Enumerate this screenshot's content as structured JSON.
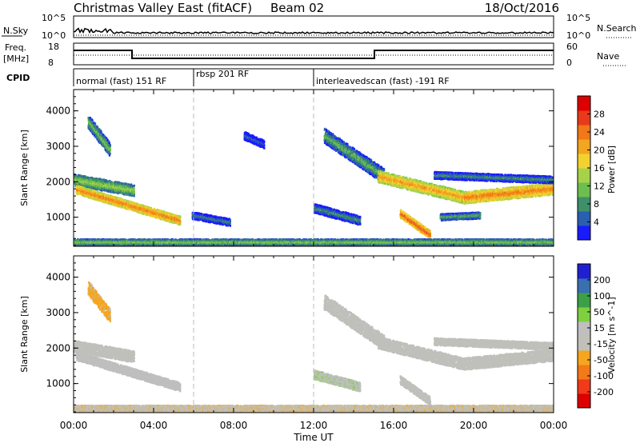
{
  "header": {
    "title": "Christmas Valley East (fitACF)",
    "beam": "Beam 02",
    "date": "18/Oct/2016"
  },
  "aux": {
    "nsky_label": "N.Sky",
    "nsky_ticks": [
      "10^5",
      "10^0"
    ],
    "nsearch_label": "N.Search",
    "nsearch_ticks": [
      "10^5",
      "10^0"
    ],
    "freq_label_1": "Freq.",
    "freq_label_2": "[MHz]",
    "freq_ticks": [
      "18",
      "8"
    ],
    "nave_label": "Nave",
    "nave_ticks": [
      "60",
      "0"
    ],
    "cpid_label": "CPID",
    "modes": [
      {
        "label": "normal (fast) 151 RF",
        "start_hour": 0
      },
      {
        "label": "rbsp 201 RF",
        "start_hour": 6
      },
      {
        "label": "interleavedscan (fast) -191 RF",
        "start_hour": 12
      }
    ]
  },
  "colors": {
    "power_scale": [
      "#1a1aff",
      "#2a5fb0",
      "#3f8f6a",
      "#6cbf4e",
      "#a6d24a",
      "#f2d230",
      "#f2a51e",
      "#f07818",
      "#e83a1a",
      "#dd0000"
    ],
    "velocity_scale": [
      "#dd0000",
      "#f03a1a",
      "#f27a18",
      "#f5a51e",
      "#c0c0b8",
      "#bfbfbf",
      "#7ed040",
      "#3ca048",
      "#3a6fb0",
      "#2020d0"
    ],
    "ground_scatter": "#bebeb8"
  },
  "chart_data": [
    {
      "type": "heatmap",
      "title": "Power",
      "xlabel": "",
      "ylabel": "Slant Range [km]",
      "xlim": [
        0,
        24
      ],
      "ylim": [
        180,
        4600
      ],
      "x_ticks": [
        "00:00",
        "04:00",
        "08:00",
        "12:00",
        "16:00",
        "20:00",
        "00:00"
      ],
      "y_ticks": [
        "1000",
        "2000",
        "3000",
        "4000"
      ],
      "colorbar_label": "Power [dB]",
      "colorbar_ticks": [
        "4",
        "8",
        "12",
        "16",
        "20",
        "24",
        "28"
      ],
      "colorbar_range": [
        0,
        32
      ],
      "features": [
        {
          "t0": 0.0,
          "t1": 3.0,
          "r0": 2050,
          "r1": 1750,
          "width": 320,
          "value": 14
        },
        {
          "t0": 0.1,
          "t1": 5.3,
          "r0": 1780,
          "r1": 900,
          "width": 240,
          "value": 24
        },
        {
          "t0": 0.7,
          "t1": 1.8,
          "r0": 3700,
          "r1": 2900,
          "width": 380,
          "value": 12
        },
        {
          "t0": 5.9,
          "t1": 7.8,
          "r0": 1050,
          "r1": 850,
          "width": 200,
          "value": 8
        },
        {
          "t0": 8.5,
          "t1": 9.5,
          "r0": 3300,
          "r1": 3050,
          "width": 220,
          "value": 6
        },
        {
          "t0": 12.0,
          "t1": 14.3,
          "r0": 1250,
          "r1": 900,
          "width": 250,
          "value": 9
        },
        {
          "t0": 12.5,
          "t1": 15.5,
          "r0": 3300,
          "r1": 2150,
          "width": 420,
          "value": 11
        },
        {
          "t0": 15.2,
          "t1": 19.5,
          "r0": 2150,
          "r1": 1550,
          "width": 330,
          "value": 22
        },
        {
          "t0": 19.5,
          "t1": 24.0,
          "r0": 1550,
          "r1": 1800,
          "width": 330,
          "value": 24
        },
        {
          "t0": 18.0,
          "t1": 24.0,
          "r0": 2180,
          "r1": 2050,
          "width": 200,
          "value": 9
        },
        {
          "t0": 16.3,
          "t1": 17.8,
          "r0": 1100,
          "r1": 500,
          "width": 230,
          "value": 26
        },
        {
          "t0": 18.3,
          "t1": 20.3,
          "r0": 1000,
          "r1": 1050,
          "width": 180,
          "value": 11
        },
        {
          "t0": 0.0,
          "t1": 24.0,
          "r0": 290,
          "r1": 290,
          "width": 180,
          "value": 13
        }
      ]
    },
    {
      "type": "heatmap",
      "title": "Velocity",
      "xlabel": "Time UT",
      "ylabel": "Slant Range [km]",
      "xlim": [
        0,
        24
      ],
      "ylim": [
        180,
        4600
      ],
      "x_ticks": [
        "00:00",
        "04:00",
        "08:00",
        "12:00",
        "16:00",
        "20:00",
        "00:00"
      ],
      "y_ticks": [
        "1000",
        "2000",
        "3000",
        "4000"
      ],
      "colorbar_label": "Velocity [m s^-1]",
      "colorbar_ticks": [
        "200",
        "100",
        "50",
        "15",
        "-15",
        "-50",
        "-100",
        "-200"
      ],
      "colorbar_range": [
        -250,
        250
      ],
      "features": [
        {
          "t0": 0.0,
          "t1": 3.0,
          "r0": 2050,
          "r1": 1750,
          "width": 320,
          "value": 0
        },
        {
          "t0": 0.1,
          "t1": 5.3,
          "r0": 1780,
          "r1": 900,
          "width": 240,
          "value": 30
        },
        {
          "t0": 0.7,
          "t1": 1.8,
          "r0": 3700,
          "r1": 2900,
          "width": 380,
          "value": -60
        },
        {
          "t0": 12.0,
          "t1": 14.3,
          "r0": 1250,
          "r1": 900,
          "width": 250,
          "value": 40
        },
        {
          "t0": 12.5,
          "t1": 15.5,
          "r0": 3300,
          "r1": 2150,
          "width": 420,
          "value": 0
        },
        {
          "t0": 15.2,
          "t1": 19.5,
          "r0": 2150,
          "r1": 1550,
          "width": 330,
          "value": 0
        },
        {
          "t0": 19.5,
          "t1": 24.0,
          "r0": 1550,
          "r1": 1800,
          "width": 330,
          "value": 0
        },
        {
          "t0": 18.0,
          "t1": 24.0,
          "r0": 2180,
          "r1": 2050,
          "width": 200,
          "value": 0
        },
        {
          "t0": 16.3,
          "t1": 17.8,
          "r0": 1100,
          "r1": 500,
          "width": 230,
          "value": 0
        },
        {
          "t0": 0.0,
          "t1": 24.0,
          "r0": 290,
          "r1": 290,
          "width": 180,
          "value": -40
        }
      ]
    }
  ]
}
